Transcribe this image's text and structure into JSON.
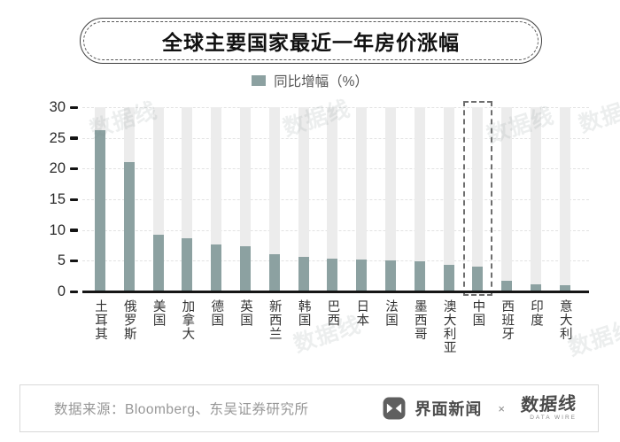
{
  "title": "全球主要国家最近一年房价涨幅",
  "legend": {
    "label": "同比增幅（%）",
    "swatch_color": "#8ca1a1"
  },
  "chart_data": {
    "type": "bar",
    "title": "全球主要国家最近一年房价涨幅",
    "categories": [
      "土耳其",
      "俄罗斯",
      "美国",
      "加拿大",
      "德国",
      "英国",
      "新西兰",
      "韩国",
      "巴西",
      "日本",
      "法国",
      "墨西哥",
      "澳大利亚",
      "中国",
      "西班牙",
      "印度",
      "意大利"
    ],
    "values": [
      26.3,
      21.0,
      9.3,
      8.7,
      7.6,
      7.4,
      6.1,
      5.6,
      5.4,
      5.2,
      5.0,
      4.9,
      4.4,
      4.0,
      1.8,
      1.1,
      1.0
    ],
    "xlabel": "",
    "ylabel": "同比增幅（%）",
    "ylim": [
      0,
      30
    ],
    "yticks": [
      0,
      5,
      10,
      15,
      20,
      25,
      30
    ],
    "grid": true,
    "legend_position": "top",
    "highlight_category": "中国",
    "bar_color": "#8ca1a1",
    "track_color": "#ececec"
  },
  "watermark": {
    "text": "数据线"
  },
  "footer": {
    "source": "数据来源：Bloomberg、东吴证券研究所",
    "brand": "界面新闻",
    "separator": "×",
    "partner_brand": "数据线",
    "partner_sub": "DATA WIRE"
  }
}
